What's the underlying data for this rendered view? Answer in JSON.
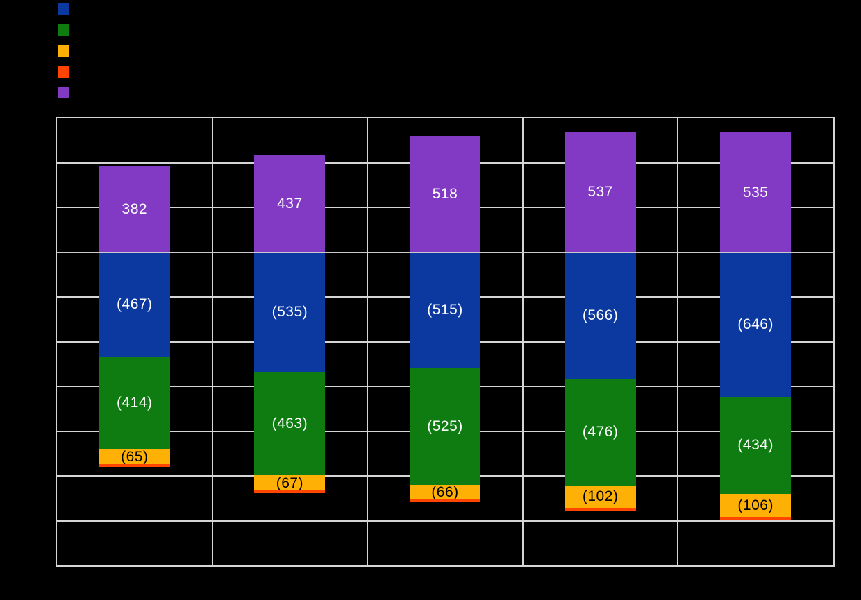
{
  "page": {
    "background": "#000000"
  },
  "legend": {
    "position": "top-left",
    "entries": [
      {
        "name": "blue",
        "label": "",
        "color": "#0B39A0"
      },
      {
        "name": "green",
        "label": "",
        "color": "#0E7C10"
      },
      {
        "name": "amber",
        "label": "",
        "color": "#FFB005"
      },
      {
        "name": "red",
        "label": "",
        "color": "#FF4500"
      },
      {
        "name": "purple",
        "label": "",
        "color": "#8239C4"
      }
    ]
  },
  "chart_data": {
    "type": "bar",
    "stacked": true,
    "orientation": "vertical",
    "title": "",
    "xlabel": "",
    "ylabel": "",
    "categories": [
      "",
      "",
      "",
      "",
      ""
    ],
    "ylim": [
      -1400,
      600
    ],
    "ytick_step": 200,
    "grid": true,
    "gridline_color": "#D5D5D5",
    "zero_line_color": "#C9C9CE",
    "plot_background": "#000000",
    "legend_position": "top-left",
    "series": [
      {
        "name": "blue",
        "color": "#0B39A0",
        "label_color": "#FFFFFF",
        "values": [
          -467,
          -535,
          -515,
          -566,
          -646
        ],
        "labels": [
          "(467)",
          "(535)",
          "(515)",
          "(566)",
          "(646)"
        ]
      },
      {
        "name": "green",
        "color": "#0E7C10",
        "label_color": "#FFFFFF",
        "values": [
          -414,
          -463,
          -525,
          -476,
          -434
        ],
        "labels": [
          "(414)",
          "(463)",
          "(525)",
          "(476)",
          "(434)"
        ]
      },
      {
        "name": "amber",
        "color": "#FFB005",
        "label_color": "#000000",
        "values": [
          -65,
          -67,
          -66,
          -102,
          -106
        ],
        "labels": [
          "(65)",
          "(67)",
          "(66)",
          "(102)",
          "(106)"
        ]
      },
      {
        "name": "red",
        "color": "#FF4500",
        "label_color": "#000000",
        "values": [
          -13,
          -13,
          -13,
          -13,
          -13
        ],
        "labels": [
          "",
          "",
          "",
          "",
          ""
        ]
      },
      {
        "name": "purple",
        "color": "#8239C4",
        "label_color": "#FFFFFF",
        "values": [
          382,
          437,
          518,
          537,
          535
        ],
        "labels": [
          "382",
          "437",
          "518",
          "537",
          "535"
        ]
      }
    ]
  }
}
